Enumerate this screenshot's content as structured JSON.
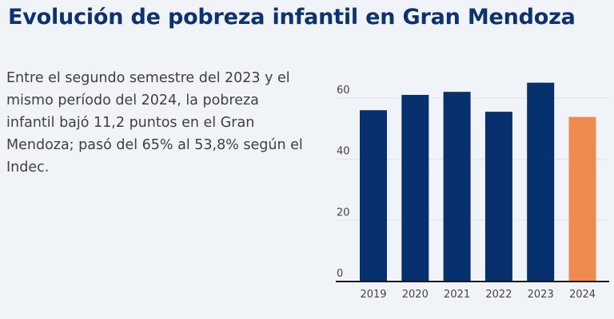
{
  "header": {
    "title": "Evolución de pobreza infantil en Gran Mendoza"
  },
  "description": "Entre el segundo semestre del 2023 y el mismo período del 2024, la pobreza infantil bajó 11,2 puntos en el Gran Mendoza; pasó del 65% al 53,8% según el Indec.",
  "colors": {
    "bar": "#07306e",
    "highlight": "#ef8a4e",
    "background": "#f0f4f9"
  },
  "chart_data": {
    "type": "bar",
    "categories": [
      "2019",
      "2020",
      "2021",
      "2022",
      "2023",
      "2024"
    ],
    "values": [
      56,
      61,
      62,
      55.5,
      65,
      53.8
    ],
    "highlight_index": 5,
    "ylim": [
      0,
      67
    ],
    "yticks": [
      0,
      20,
      40,
      60
    ],
    "grid": true,
    "title": "",
    "xlabel": "",
    "ylabel": ""
  }
}
